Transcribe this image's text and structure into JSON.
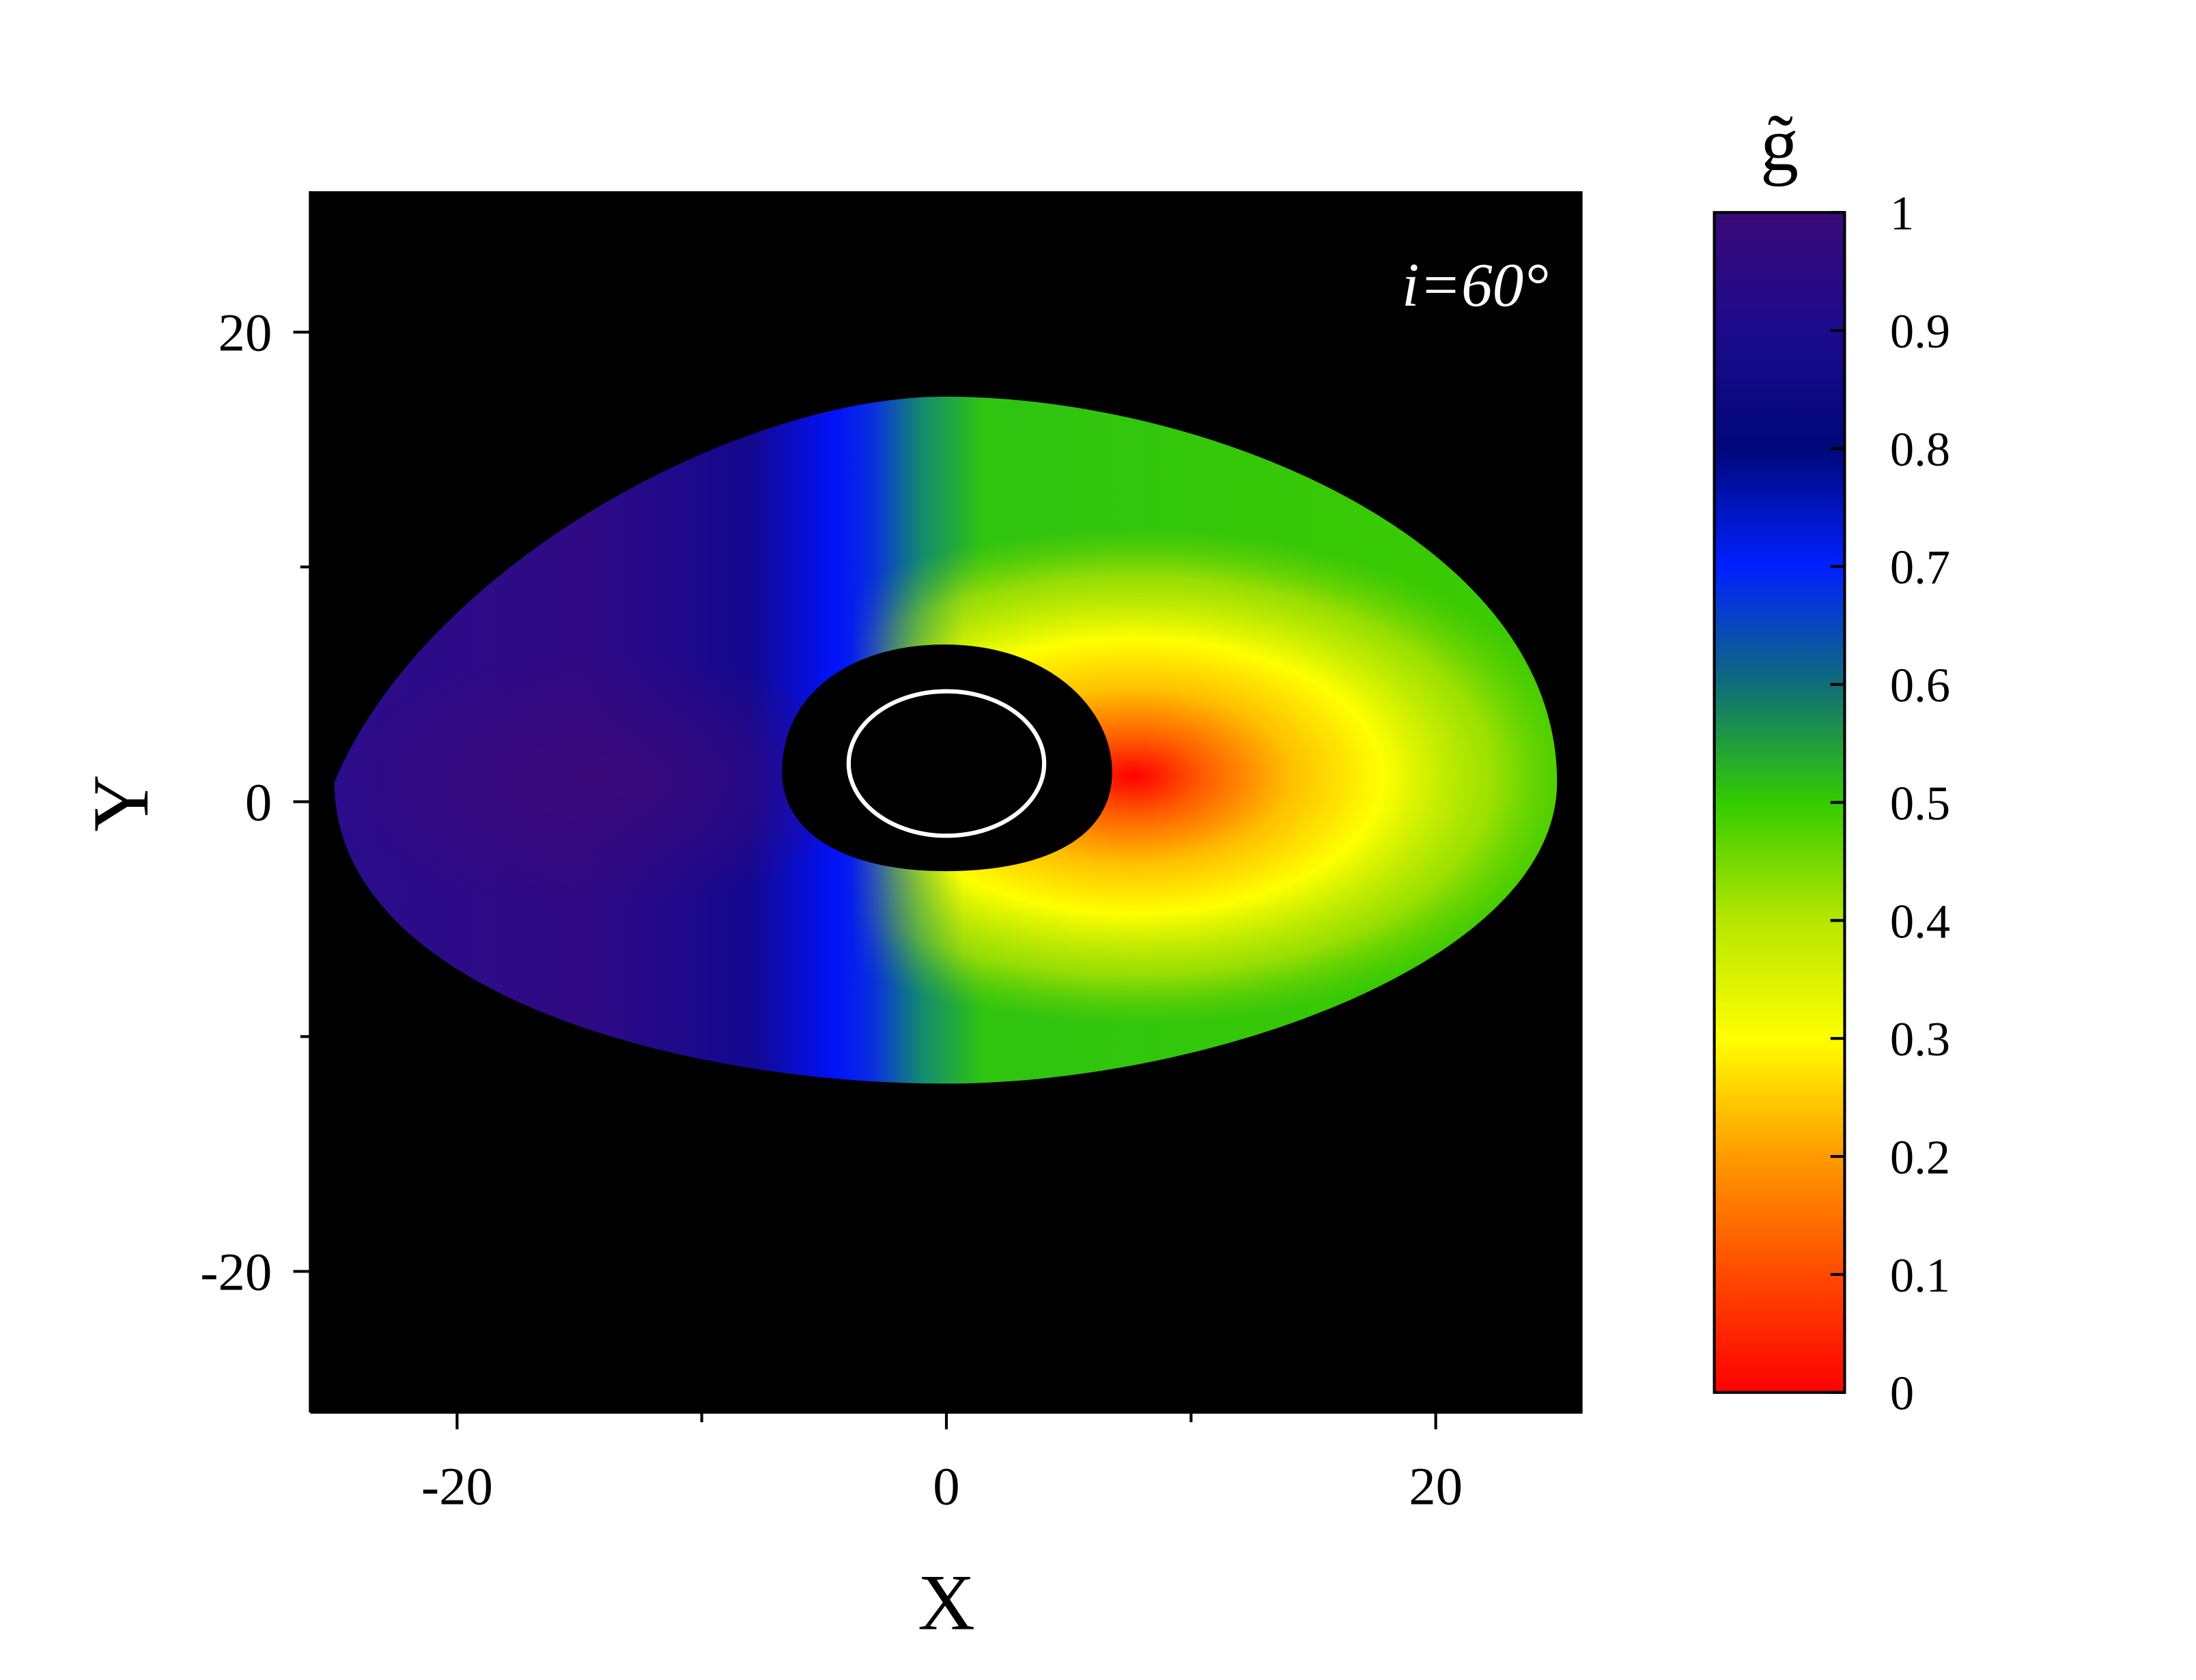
{
  "chart_data": {
    "type": "heatmap",
    "xlabel": "X",
    "ylabel": "Y",
    "annotation": "i=60°",
    "xlim": [
      -26,
      26
    ],
    "ylim": [
      -26,
      26
    ],
    "xticks": [
      -20,
      0,
      20
    ],
    "yticks": [
      -20,
      0,
      20
    ],
    "xminor_ticks": [
      -10,
      10
    ],
    "yminor_ticks": [
      -10,
      10
    ],
    "colorbar": {
      "label": "g̃",
      "clim": [
        0,
        1
      ],
      "ticks": [
        0,
        0.1,
        0.2,
        0.3,
        0.4,
        0.5,
        0.6,
        0.7,
        0.8,
        0.9,
        1
      ],
      "colors": [
        "#ff0000",
        "#ff4a00",
        "#ff9a00",
        "#ffff00",
        "#b6e600",
        "#33cc00",
        "#0f6e78",
        "#0020ff",
        "#00087a",
        "#1c0a8c",
        "#3a0a78"
      ]
    },
    "background": "#000000"
  }
}
